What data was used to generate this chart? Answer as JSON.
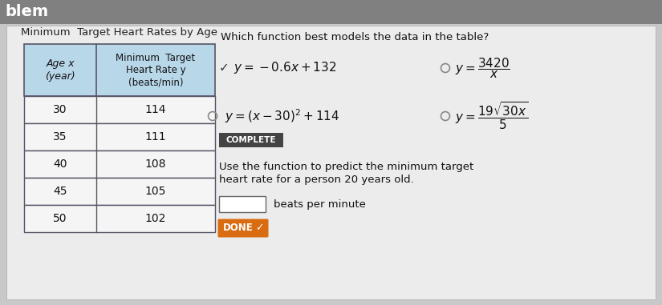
{
  "title_table": "Minimum  Target Heart Rates by Age",
  "table_headers_col1": "Age x\n(year)",
  "table_headers_col2": "Minimum  Target\nHeart Rate y\n(beats/min)",
  "table_data": [
    [
      "30",
      "114"
    ],
    [
      "35",
      "111"
    ],
    [
      "40",
      "108"
    ],
    [
      "45",
      "105"
    ],
    [
      "50",
      "102"
    ]
  ],
  "question": "Which function best models the data in the table?",
  "complete_label": "COMPLETE",
  "follow_up_line1": "Use the function to predict the minimum target",
  "follow_up_line2": "heart rate for a person 20 years old.",
  "answer_box_label": "beats per minute",
  "done_label": "DONE",
  "bg_color": "#c8c8c8",
  "paper_color": "#ececec",
  "header_bg": "#b8d8ea",
  "table_border": "#555566",
  "complete_bg": "#444444",
  "complete_text": "#ffffff",
  "done_bg": "#d96b10",
  "done_text": "#ffffff",
  "top_bar_color": "#808080",
  "title_partial": "blem"
}
